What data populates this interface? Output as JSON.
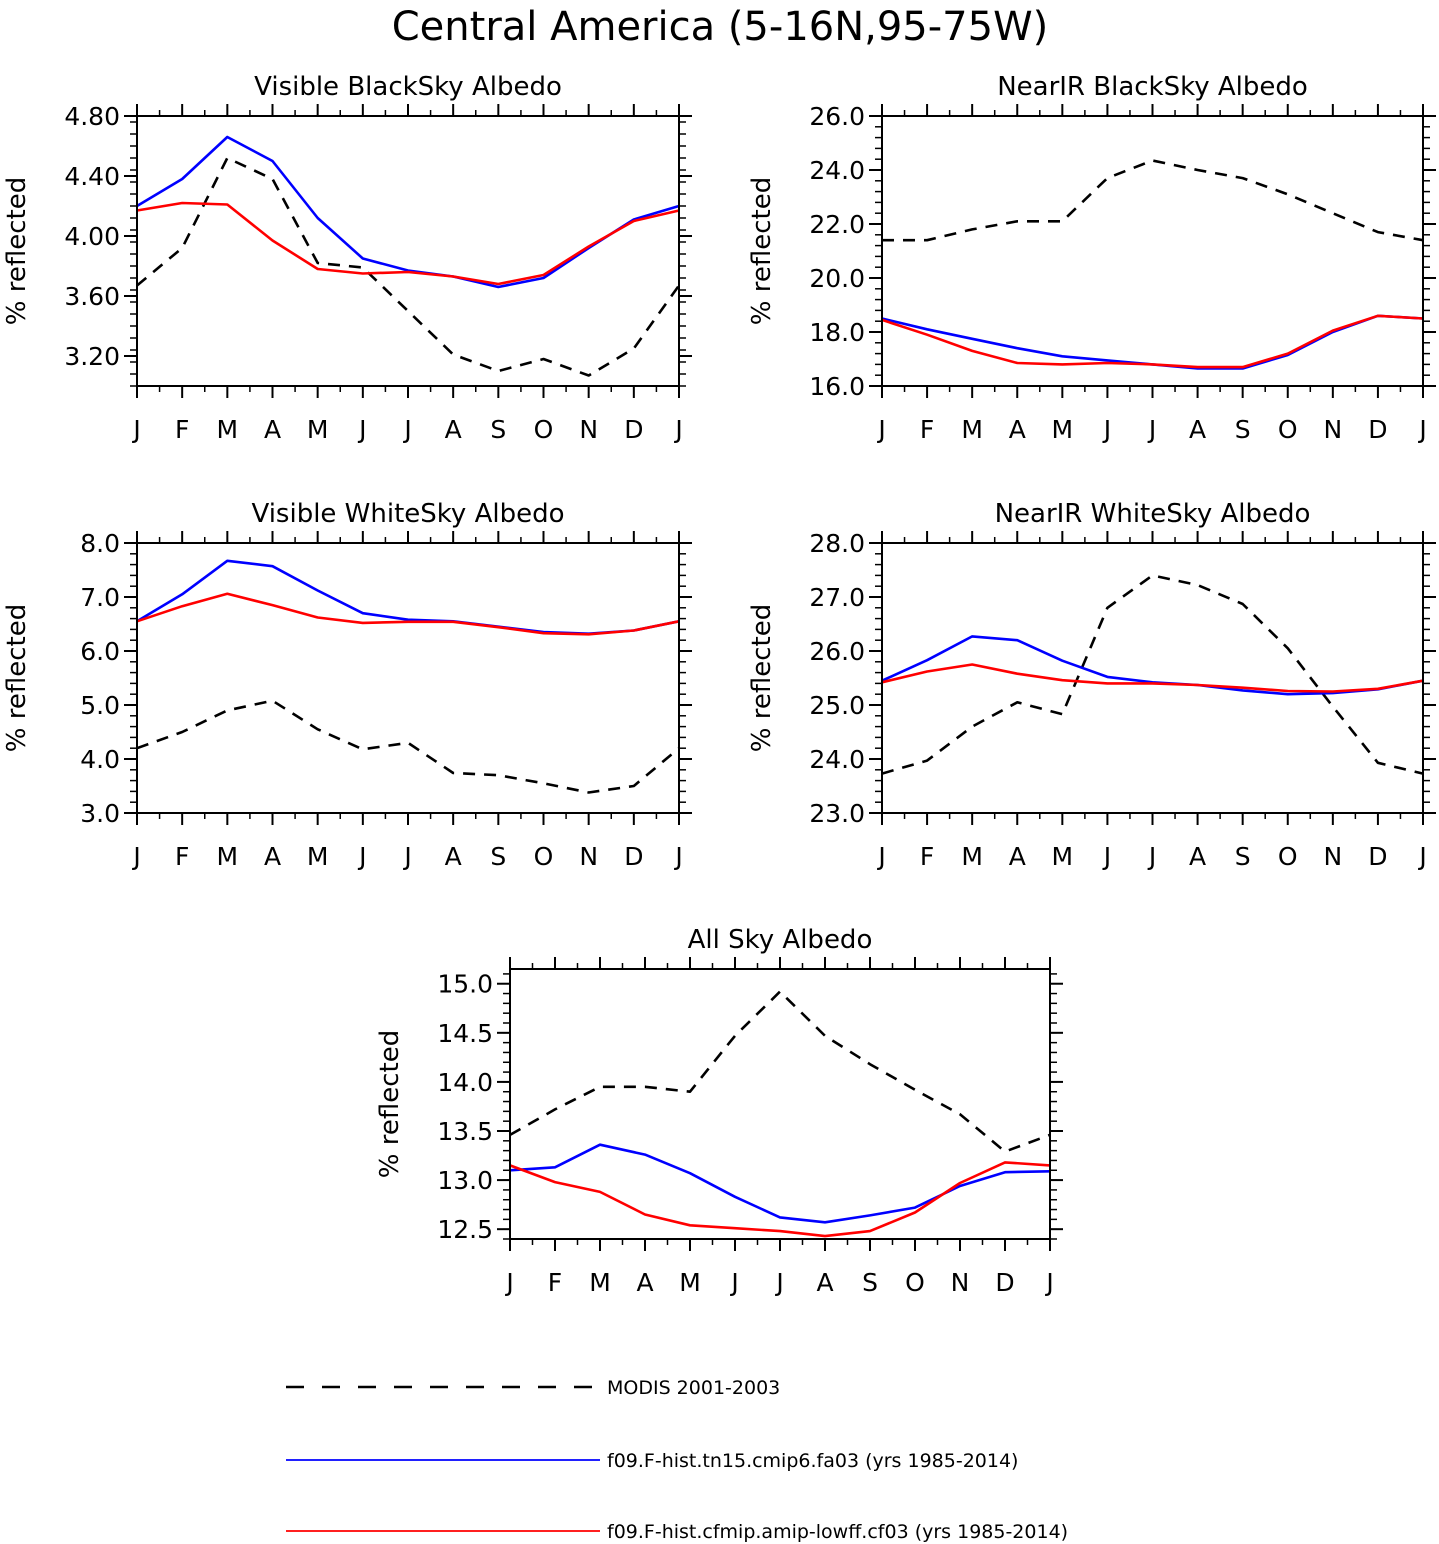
{
  "figure_title": "Central America (5-16N,95-75W)",
  "legend": {
    "position": "bottom",
    "entries": [
      {
        "label": "MODIS 2001-2003",
        "color": "#000000",
        "style": "dashed"
      },
      {
        "label": "f09.F-hist.tn15.cmip6.fa03 (yrs 1985-2014)",
        "color": "#0000ff",
        "style": "solid"
      },
      {
        "label": "f09.F-hist.cfmip.amip-lowff.cf03 (yrs 1985-2014)",
        "color": "#ff0000",
        "style": "solid"
      }
    ]
  },
  "chart_data": [
    {
      "type": "line",
      "title": "Visible BlackSky Albedo",
      "ylabel": "% reflected",
      "xlabel": "",
      "categories": [
        "J",
        "F",
        "M",
        "A",
        "M",
        "J",
        "J",
        "A",
        "S",
        "O",
        "N",
        "D",
        "J"
      ],
      "ylim": [
        3.0,
        4.8
      ],
      "yticks": [
        "3.20",
        "3.60",
        "4.00",
        "4.40",
        "4.80"
      ],
      "grid": false,
      "series": [
        {
          "name": "MODIS 2001-2003",
          "color": "#000000",
          "dash": true,
          "values": [
            3.67,
            3.92,
            4.52,
            4.38,
            3.82,
            3.79,
            3.5,
            3.21,
            3.1,
            3.18,
            3.07,
            3.25,
            3.67
          ]
        },
        {
          "name": "f09.F-hist.tn15.cmip6.fa03 (yrs 1985-2014)",
          "color": "#0000ff",
          "dash": false,
          "values": [
            4.2,
            4.38,
            4.66,
            4.5,
            4.12,
            3.85,
            3.77,
            3.73,
            3.66,
            3.72,
            3.92,
            4.11,
            4.2
          ]
        },
        {
          "name": "f09.F-hist.cfmip.amip-lowff.cf03 (yrs 1985-2014)",
          "color": "#ff0000",
          "dash": false,
          "values": [
            4.17,
            4.22,
            4.21,
            3.97,
            3.78,
            3.75,
            3.76,
            3.73,
            3.68,
            3.74,
            3.93,
            4.1,
            4.17
          ]
        }
      ]
    },
    {
      "type": "line",
      "title": "NearIR BlackSky Albedo",
      "ylabel": "% reflected",
      "xlabel": "",
      "categories": [
        "J",
        "F",
        "M",
        "A",
        "M",
        "J",
        "J",
        "A",
        "S",
        "O",
        "N",
        "D",
        "J"
      ],
      "ylim": [
        16.0,
        26.0
      ],
      "yticks": [
        "16.0",
        "18.0",
        "20.0",
        "22.0",
        "24.0",
        "26.0"
      ],
      "grid": false,
      "series": [
        {
          "name": "MODIS 2001-2003",
          "color": "#000000",
          "dash": true,
          "values": [
            21.4,
            21.4,
            21.8,
            22.1,
            22.1,
            23.7,
            24.35,
            24.0,
            23.7,
            23.1,
            22.4,
            21.7,
            21.4
          ]
        },
        {
          "name": "f09.F-hist.tn15.cmip6.fa03 (yrs 1985-2014)",
          "color": "#0000ff",
          "dash": false,
          "values": [
            18.5,
            18.1,
            17.75,
            17.4,
            17.1,
            16.95,
            16.8,
            16.65,
            16.65,
            17.15,
            18.0,
            18.6,
            18.5
          ]
        },
        {
          "name": "f09.F-hist.cfmip.amip-lowff.cf03 (yrs 1985-2014)",
          "color": "#ff0000",
          "dash": false,
          "values": [
            18.45,
            17.9,
            17.3,
            16.85,
            16.8,
            16.85,
            16.8,
            16.7,
            16.7,
            17.2,
            18.05,
            18.6,
            18.5
          ]
        }
      ]
    },
    {
      "type": "line",
      "title": "Visible WhiteSky Albedo",
      "ylabel": "% reflected",
      "xlabel": "",
      "categories": [
        "J",
        "F",
        "M",
        "A",
        "M",
        "J",
        "J",
        "A",
        "S",
        "O",
        "N",
        "D",
        "J"
      ],
      "ylim": [
        3.0,
        8.0
      ],
      "yticks": [
        "3.0",
        "4.0",
        "5.0",
        "6.0",
        "7.0",
        "8.0"
      ],
      "grid": false,
      "series": [
        {
          "name": "MODIS 2001-2003",
          "color": "#000000",
          "dash": true,
          "values": [
            4.2,
            4.5,
            4.9,
            5.08,
            4.55,
            4.18,
            4.3,
            3.74,
            3.7,
            3.55,
            3.38,
            3.5,
            4.2
          ]
        },
        {
          "name": "f09.F-hist.tn15.cmip6.fa03 (yrs 1985-2014)",
          "color": "#0000ff",
          "dash": false,
          "values": [
            6.55,
            7.05,
            7.67,
            7.57,
            7.12,
            6.7,
            6.58,
            6.55,
            6.45,
            6.35,
            6.32,
            6.38,
            6.55
          ]
        },
        {
          "name": "f09.F-hist.cfmip.amip-lowff.cf03 (yrs 1985-2014)",
          "color": "#ff0000",
          "dash": false,
          "values": [
            6.55,
            6.83,
            7.06,
            6.85,
            6.62,
            6.52,
            6.54,
            6.54,
            6.44,
            6.33,
            6.31,
            6.38,
            6.55
          ]
        }
      ]
    },
    {
      "type": "line",
      "title": "NearIR WhiteSky Albedo",
      "ylabel": "% reflected",
      "xlabel": "",
      "categories": [
        "J",
        "F",
        "M",
        "A",
        "M",
        "J",
        "J",
        "A",
        "S",
        "O",
        "N",
        "D",
        "J"
      ],
      "ylim": [
        23.0,
        28.0
      ],
      "yticks": [
        "23.0",
        "24.0",
        "25.0",
        "26.0",
        "27.0",
        "28.0"
      ],
      "grid": false,
      "series": [
        {
          "name": "MODIS 2001-2003",
          "color": "#000000",
          "dash": true,
          "values": [
            23.73,
            23.97,
            24.6,
            25.05,
            24.83,
            26.8,
            27.4,
            27.22,
            26.87,
            26.05,
            24.97,
            23.93,
            23.73
          ]
        },
        {
          "name": "f09.F-hist.tn15.cmip6.fa03 (yrs 1985-2014)",
          "color": "#0000ff",
          "dash": false,
          "values": [
            25.45,
            25.83,
            26.27,
            26.2,
            25.82,
            25.52,
            25.42,
            25.37,
            25.27,
            25.2,
            25.22,
            25.29,
            25.45
          ]
        },
        {
          "name": "f09.F-hist.cfmip.amip-lowff.cf03 (yrs 1985-2014)",
          "color": "#ff0000",
          "dash": false,
          "values": [
            25.42,
            25.62,
            25.75,
            25.58,
            25.46,
            25.4,
            25.4,
            25.37,
            25.32,
            25.26,
            25.25,
            25.3,
            25.45
          ]
        }
      ]
    },
    {
      "type": "line",
      "title": "All Sky Albedo",
      "ylabel": "% reflected",
      "xlabel": "",
      "categories": [
        "J",
        "F",
        "M",
        "A",
        "M",
        "J",
        "J",
        "A",
        "S",
        "O",
        "N",
        "D",
        "J"
      ],
      "ylim": [
        12.4,
        15.15
      ],
      "yticks": [
        "12.5",
        "13.0",
        "13.5",
        "14.0",
        "14.5",
        "15.0"
      ],
      "grid": false,
      "series": [
        {
          "name": "MODIS 2001-2003",
          "color": "#000000",
          "dash": true,
          "values": [
            13.46,
            13.72,
            13.95,
            13.95,
            13.9,
            14.47,
            14.92,
            14.47,
            14.18,
            13.92,
            13.67,
            13.29,
            13.46
          ]
        },
        {
          "name": "f09.F-hist.tn15.cmip6.fa03 (yrs 1985-2014)",
          "color": "#0000ff",
          "dash": false,
          "values": [
            13.1,
            13.13,
            13.36,
            13.26,
            13.07,
            12.83,
            12.62,
            12.57,
            12.64,
            12.72,
            12.94,
            13.08,
            13.09
          ]
        },
        {
          "name": "f09.F-hist.cfmip.amip-lowff.cf03 (yrs 1985-2014)",
          "color": "#ff0000",
          "dash": false,
          "values": [
            13.15,
            12.98,
            12.88,
            12.65,
            12.54,
            12.51,
            12.48,
            12.43,
            12.48,
            12.67,
            12.97,
            13.18,
            13.15
          ]
        }
      ]
    }
  ]
}
